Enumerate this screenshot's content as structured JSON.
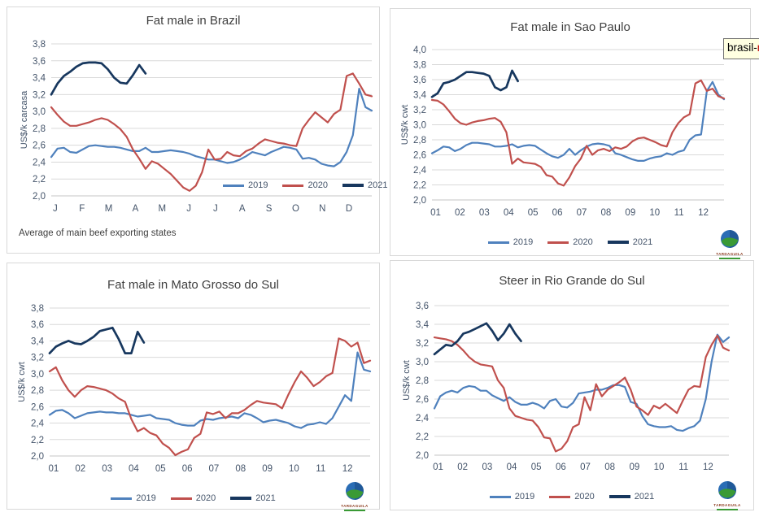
{
  "palette": {
    "s2019": "#4f81bd",
    "s2020": "#c0504d",
    "s2021": "#17375e",
    "grid": "#d9d9d9",
    "axis_text": "#44546a",
    "title_text": "#3f3f3f"
  },
  "tooltip": {
    "text": "brasil-",
    "cut_char": "m"
  },
  "logo": {
    "text": "TARDAGUILA"
  },
  "chart_data": [
    {
      "type": "line",
      "title": "Fat male in Brazil",
      "ylabel": "US$/k carcasa",
      "footnote": "Average of main beef exporting states",
      "ylim": [
        2.0,
        3.8
      ],
      "ytick_labels": [
        "2,0",
        "2,2",
        "2,4",
        "2,6",
        "2,8",
        "3,0",
        "3,2",
        "3,4",
        "3,6",
        "3,8"
      ],
      "x_labels": [
        "J",
        "F",
        "M",
        "A",
        "M",
        "J",
        "J",
        "A",
        "S",
        "O",
        "N",
        "D"
      ],
      "x_note": "weekly prices Jan-Dec",
      "grid": "horizontal",
      "legend_position": "inside-lower-right",
      "series": [
        {
          "name": "2019",
          "color": "#4f81bd",
          "values": [
            2.46,
            2.56,
            2.57,
            2.52,
            2.51,
            2.55,
            2.59,
            2.6,
            2.59,
            2.58,
            2.58,
            2.57,
            2.55,
            2.53,
            2.53,
            2.57,
            2.52,
            2.52,
            2.53,
            2.54,
            2.53,
            2.52,
            2.5,
            2.47,
            2.45,
            2.43,
            2.43,
            2.41,
            2.39,
            2.4,
            2.43,
            2.47,
            2.52,
            2.5,
            2.48,
            2.52,
            2.55,
            2.58,
            2.57,
            2.55,
            2.44,
            2.45,
            2.43,
            2.38,
            2.36,
            2.35,
            2.4,
            2.52,
            2.72,
            3.27,
            3.05,
            3.01
          ]
        },
        {
          "name": "2020",
          "color": "#c0504d",
          "values": [
            3.05,
            2.96,
            2.88,
            2.83,
            2.83,
            2.85,
            2.87,
            2.9,
            2.92,
            2.9,
            2.85,
            2.79,
            2.7,
            2.55,
            2.44,
            2.32,
            2.41,
            2.38,
            2.32,
            2.26,
            2.18,
            2.1,
            2.06,
            2.12,
            2.28,
            2.55,
            2.43,
            2.44,
            2.52,
            2.48,
            2.47,
            2.53,
            2.56,
            2.62,
            2.67,
            2.65,
            2.63,
            2.62,
            2.6,
            2.59,
            2.8,
            2.9,
            2.99,
            2.93,
            2.87,
            2.97,
            3.02,
            3.42,
            3.45,
            3.33,
            3.2,
            3.18
          ]
        },
        {
          "name": "2021",
          "color": "#17375e",
          "values": [
            3.2,
            3.33,
            3.42,
            3.47,
            3.53,
            3.57,
            3.58,
            3.58,
            3.57,
            3.5,
            3.4,
            3.34,
            3.33,
            3.43,
            3.55,
            3.45
          ]
        }
      ]
    },
    {
      "type": "line",
      "title": "Fat male in Sao Paulo",
      "ylabel": "US$/k cwt",
      "ylim": [
        2.0,
        4.0
      ],
      "ytick_labels": [
        "2,0",
        "2,2",
        "2,4",
        "2,6",
        "2,8",
        "3,0",
        "3,2",
        "3,4",
        "3,6",
        "3,8",
        "4,0"
      ],
      "x_labels": [
        "01",
        "02",
        "03",
        "04",
        "05",
        "06",
        "07",
        "08",
        "09",
        "10",
        "11",
        "12"
      ],
      "x_note": "weekly prices Jan-Dec",
      "grid": "horizontal",
      "legend_position": "below",
      "series": [
        {
          "name": "2019",
          "color": "#4f81bd",
          "values": [
            2.62,
            2.66,
            2.71,
            2.7,
            2.65,
            2.68,
            2.73,
            2.76,
            2.76,
            2.75,
            2.74,
            2.71,
            2.71,
            2.72,
            2.74,
            2.7,
            2.72,
            2.73,
            2.72,
            2.67,
            2.62,
            2.58,
            2.56,
            2.6,
            2.68,
            2.6,
            2.66,
            2.71,
            2.74,
            2.75,
            2.74,
            2.72,
            2.62,
            2.6,
            2.57,
            2.54,
            2.52,
            2.52,
            2.55,
            2.57,
            2.58,
            2.62,
            2.6,
            2.64,
            2.66,
            2.8,
            2.86,
            2.87,
            3.45,
            3.57,
            3.4,
            3.34
          ]
        },
        {
          "name": "2020",
          "color": "#c0504d",
          "values": [
            3.33,
            3.32,
            3.27,
            3.18,
            3.08,
            3.02,
            3.0,
            3.03,
            3.05,
            3.06,
            3.08,
            3.09,
            3.04,
            2.9,
            2.48,
            2.55,
            2.5,
            2.49,
            2.48,
            2.44,
            2.33,
            2.31,
            2.22,
            2.19,
            2.3,
            2.45,
            2.55,
            2.72,
            2.6,
            2.66,
            2.68,
            2.65,
            2.7,
            2.68,
            2.71,
            2.78,
            2.82,
            2.83,
            2.8,
            2.77,
            2.73,
            2.71,
            2.9,
            3.02,
            3.1,
            3.14,
            3.55,
            3.59,
            3.45,
            3.48,
            3.38,
            3.35
          ]
        },
        {
          "name": "2021",
          "color": "#17375e",
          "values": [
            3.37,
            3.42,
            3.55,
            3.57,
            3.6,
            3.65,
            3.7,
            3.7,
            3.69,
            3.68,
            3.65,
            3.5,
            3.46,
            3.5,
            3.72,
            3.58
          ]
        }
      ]
    },
    {
      "type": "line",
      "title": "Fat male in Mato Grosso do Sul",
      "ylabel": "US$/k cwt",
      "ylim": [
        2.0,
        3.8
      ],
      "ytick_labels": [
        "2,0",
        "2,2",
        "2,4",
        "2,6",
        "2,8",
        "3,0",
        "3,2",
        "3,4",
        "3,6",
        "3,8"
      ],
      "x_labels": [
        "01",
        "02",
        "03",
        "04",
        "05",
        "06",
        "07",
        "08",
        "09",
        "10",
        "11",
        "12"
      ],
      "x_note": "weekly prices Jan-Dec",
      "grid": "horizontal",
      "legend_position": "below",
      "series": [
        {
          "name": "2019",
          "color": "#4f81bd",
          "values": [
            2.5,
            2.55,
            2.56,
            2.52,
            2.46,
            2.49,
            2.52,
            2.53,
            2.54,
            2.53,
            2.53,
            2.52,
            2.52,
            2.5,
            2.48,
            2.49,
            2.5,
            2.46,
            2.45,
            2.44,
            2.4,
            2.38,
            2.37,
            2.37,
            2.43,
            2.45,
            2.44,
            2.46,
            2.47,
            2.48,
            2.46,
            2.52,
            2.5,
            2.46,
            2.41,
            2.43,
            2.44,
            2.42,
            2.4,
            2.36,
            2.34,
            2.38,
            2.39,
            2.41,
            2.39,
            2.46,
            2.6,
            2.74,
            2.67,
            3.26,
            3.05,
            3.03
          ]
        },
        {
          "name": "2020",
          "color": "#c0504d",
          "values": [
            3.03,
            3.08,
            2.92,
            2.8,
            2.72,
            2.8,
            2.85,
            2.84,
            2.82,
            2.8,
            2.76,
            2.7,
            2.66,
            2.45,
            2.3,
            2.34,
            2.28,
            2.25,
            2.15,
            2.1,
            2.01,
            2.05,
            2.08,
            2.22,
            2.27,
            2.53,
            2.51,
            2.54,
            2.46,
            2.52,
            2.52,
            2.56,
            2.62,
            2.67,
            2.65,
            2.64,
            2.63,
            2.58,
            2.75,
            2.9,
            3.03,
            2.95,
            2.85,
            2.9,
            2.97,
            3.01,
            3.43,
            3.4,
            3.33,
            3.38,
            3.13,
            3.16
          ]
        },
        {
          "name": "2021",
          "color": "#17375e",
          "values": [
            3.25,
            3.33,
            3.37,
            3.4,
            3.37,
            3.36,
            3.4,
            3.45,
            3.52,
            3.54,
            3.56,
            3.42,
            3.25,
            3.25,
            3.51,
            3.38
          ]
        }
      ]
    },
    {
      "type": "line",
      "title": "Steer in Rio Grande do Sul",
      "ylabel": "US$/k cwt",
      "ylim": [
        2.0,
        3.6
      ],
      "ytick_labels": [
        "2,0",
        "2,2",
        "2,4",
        "2,6",
        "2,8",
        "3,0",
        "3,2",
        "3,4",
        "3,6"
      ],
      "x_labels": [
        "01",
        "02",
        "03",
        "04",
        "05",
        "06",
        "07",
        "08",
        "09",
        "10",
        "11",
        "12"
      ],
      "x_note": "weekly prices Jan-Dec",
      "grid": "horizontal",
      "legend_position": "below",
      "series": [
        {
          "name": "2019",
          "color": "#4f81bd",
          "values": [
            2.5,
            2.63,
            2.67,
            2.69,
            2.67,
            2.72,
            2.74,
            2.73,
            2.69,
            2.69,
            2.64,
            2.61,
            2.58,
            2.62,
            2.57,
            2.54,
            2.54,
            2.56,
            2.54,
            2.5,
            2.58,
            2.6,
            2.52,
            2.51,
            2.56,
            2.66,
            2.67,
            2.68,
            2.7,
            2.7,
            2.72,
            2.75,
            2.75,
            2.73,
            2.57,
            2.55,
            2.42,
            2.33,
            2.31,
            2.3,
            2.3,
            2.31,
            2.27,
            2.26,
            2.29,
            2.31,
            2.37,
            2.6,
            3.0,
            3.29,
            3.21,
            3.26
          ]
        },
        {
          "name": "2020",
          "color": "#c0504d",
          "values": [
            3.26,
            3.25,
            3.24,
            3.22,
            3.18,
            3.12,
            3.05,
            3.0,
            2.97,
            2.96,
            2.95,
            2.8,
            2.72,
            2.5,
            2.42,
            2.4,
            2.38,
            2.37,
            2.3,
            2.19,
            2.18,
            2.04,
            2.07,
            2.15,
            2.3,
            2.33,
            2.62,
            2.48,
            2.76,
            2.63,
            2.7,
            2.74,
            2.78,
            2.83,
            2.7,
            2.52,
            2.48,
            2.43,
            2.53,
            2.5,
            2.55,
            2.5,
            2.45,
            2.58,
            2.7,
            2.74,
            2.73,
            3.05,
            3.18,
            3.28,
            3.15,
            3.12
          ]
        },
        {
          "name": "2021",
          "color": "#17375e",
          "values": [
            3.08,
            3.13,
            3.18,
            3.17,
            3.22,
            3.3,
            3.32,
            3.35,
            3.38,
            3.41,
            3.33,
            3.23,
            3.3,
            3.4,
            3.3,
            3.22
          ]
        }
      ]
    }
  ]
}
